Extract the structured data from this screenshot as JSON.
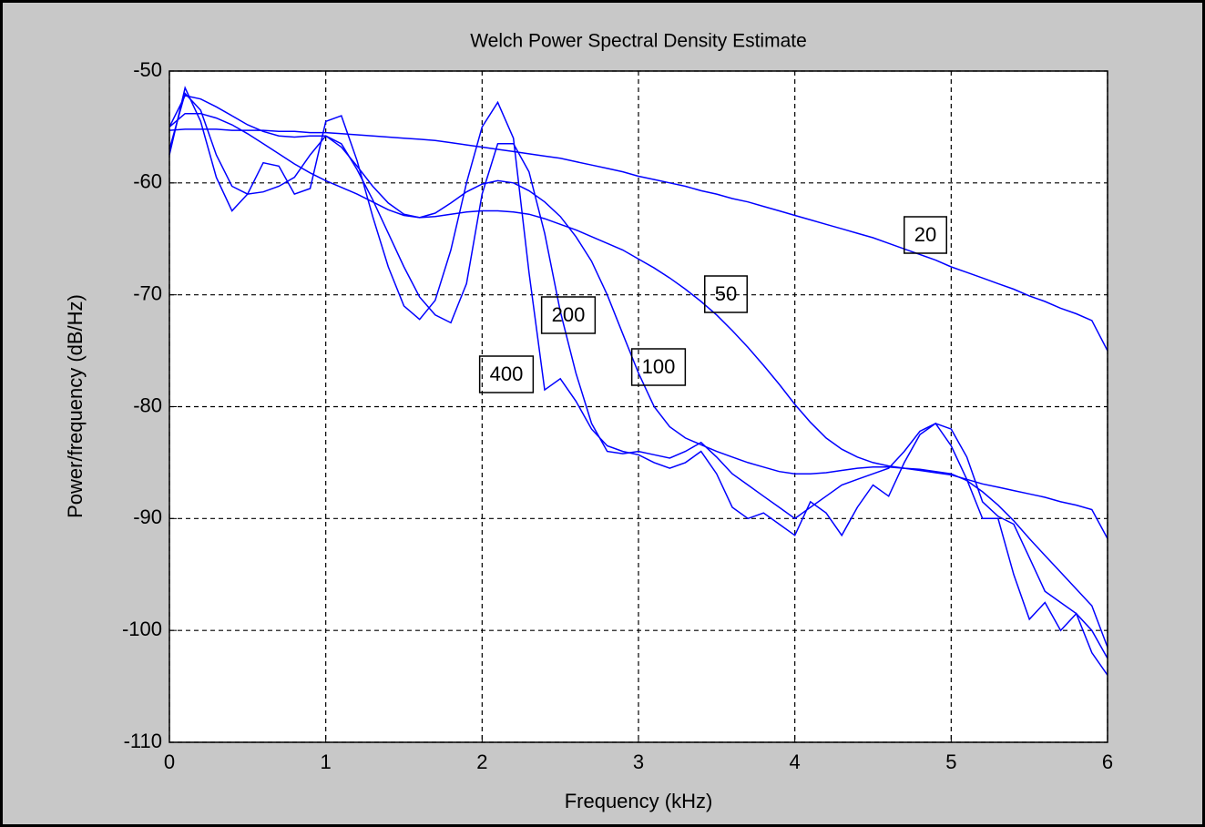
{
  "chart_data": {
    "type": "line",
    "title": "Welch Power Spectral Density Estimate",
    "x_label": "Frequency (kHz)",
    "y_label": "Power/frequency (dB/Hz)",
    "xlim": [
      0,
      6
    ],
    "ylim": [
      -110,
      -50
    ],
    "xticks": [
      0,
      1,
      2,
      3,
      4,
      5,
      6
    ],
    "yticks": [
      -110,
      -100,
      -90,
      -80,
      -70,
      -60,
      -50
    ],
    "grid": true,
    "x": [
      0,
      0.1,
      0.2,
      0.3,
      0.4,
      0.5,
      0.6,
      0.7,
      0.8,
      0.9,
      1,
      1.1,
      1.2,
      1.3,
      1.4,
      1.5,
      1.6,
      1.7,
      1.8,
      1.9,
      2,
      2.1,
      2.2,
      2.3,
      2.4,
      2.5,
      2.6,
      2.7,
      2.8,
      2.9,
      3,
      3.1,
      3.2,
      3.3,
      3.4,
      3.5,
      3.6,
      3.7,
      3.8,
      3.9,
      4,
      4.1,
      4.2,
      4.3,
      4.4,
      4.5,
      4.6,
      4.7,
      4.8,
      4.9,
      5,
      5.1,
      5.2,
      5.3,
      5.4,
      5.5,
      5.6,
      5.7,
      5.8,
      5.9,
      6
    ],
    "series": [
      {
        "name": "20",
        "color": "#0000ff",
        "values": [
          -55.3,
          -55.2,
          -55.2,
          -55.2,
          -55.3,
          -55.3,
          -55.3,
          -55.4,
          -55.4,
          -55.5,
          -55.5,
          -55.6,
          -55.7,
          -55.8,
          -55.9,
          -56.0,
          -56.1,
          -56.2,
          -56.4,
          -56.6,
          -56.8,
          -57.0,
          -57.2,
          -57.4,
          -57.6,
          -57.8,
          -58.1,
          -58.4,
          -58.7,
          -59.0,
          -59.4,
          -59.7,
          -60.0,
          -60.3,
          -60.7,
          -61.0,
          -61.4,
          -61.7,
          -62.1,
          -62.5,
          -62.9,
          -63.3,
          -63.7,
          -64.1,
          -64.5,
          -64.9,
          -65.4,
          -65.9,
          -66.4,
          -66.9,
          -67.5,
          -68.0,
          -68.5,
          -69.0,
          -69.5,
          -70.1,
          -70.6,
          -71.2,
          -71.7,
          -72.3,
          -75.0
        ]
      },
      {
        "name": "50",
        "color": "#0000ff",
        "values": [
          -55,
          -53.8,
          -53.8,
          -54.2,
          -54.8,
          -55.6,
          -56.5,
          -57.4,
          -58.3,
          -59.1,
          -59.8,
          -60.4,
          -61.0,
          -61.7,
          -62.4,
          -62.9,
          -63.1,
          -63.0,
          -62.8,
          -62.6,
          -62.5,
          -62.5,
          -62.6,
          -62.8,
          -63.2,
          -63.7,
          -64.2,
          -64.8,
          -65.4,
          -66.0,
          -66.8,
          -67.6,
          -68.5,
          -69.5,
          -70.6,
          -71.8,
          -73.2,
          -74.7,
          -76.3,
          -78.0,
          -79.8,
          -81.4,
          -82.8,
          -83.8,
          -84.5,
          -85.0,
          -85.3,
          -85.5,
          -85.7,
          -85.9,
          -86.1,
          -86.5,
          -86.9,
          -87.2,
          -87.5,
          -87.8,
          -88.1,
          -88.5,
          -88.8,
          -89.2,
          -91.8
        ]
      },
      {
        "name": "100",
        "color": "#0000ff",
        "values": [
          -55,
          -52.2,
          -52.5,
          -53.2,
          -54,
          -54.8,
          -55.4,
          -55.8,
          -55.9,
          -55.8,
          -55.8,
          -56.8,
          -58.5,
          -60.3,
          -61.8,
          -62.8,
          -63.1,
          -62.7,
          -61.8,
          -60.8,
          -60.1,
          -59.8,
          -60.0,
          -60.7,
          -61.7,
          -63.0,
          -64.8,
          -67.0,
          -70.0,
          -73.5,
          -77.0,
          -80.0,
          -81.8,
          -82.8,
          -83.4,
          -84.0,
          -84.5,
          -85.0,
          -85.4,
          -85.8,
          -86.0,
          -86.0,
          -85.9,
          -85.7,
          -85.5,
          -85.4,
          -85.4,
          -85.5,
          -85.6,
          -85.8,
          -86.0,
          -86.6,
          -87.6,
          -88.8,
          -90.2,
          -91.8,
          -93.3,
          -94.8,
          -96.3,
          -97.8,
          -101.5
        ]
      },
      {
        "name": "200",
        "color": "#0000ff",
        "values": [
          -57,
          -52,
          -53.5,
          -57.5,
          -60.3,
          -61,
          -60.8,
          -60.3,
          -59.5,
          -57.5,
          -55.8,
          -56.5,
          -58.8,
          -61.5,
          -64.5,
          -67.5,
          -70.2,
          -71.8,
          -72.5,
          -69,
          -61,
          -56.5,
          -56.5,
          -59,
          -64.5,
          -71.5,
          -77,
          -81.5,
          -84,
          -84.2,
          -84,
          -84.3,
          -84.6,
          -84,
          -83.2,
          -84.5,
          -86,
          -87,
          -88,
          -89,
          -90,
          -89,
          -88,
          -87,
          -86.5,
          -86,
          -85.5,
          -84,
          -82.2,
          -81.5,
          -82,
          -84.5,
          -88.5,
          -89.8,
          -90.5,
          -93.5,
          -96.5,
          -97.5,
          -98.5,
          -100,
          -102.5
        ]
      },
      {
        "name": "400",
        "color": "#0000ff",
        "values": [
          -57.5,
          -51.5,
          -54.5,
          -59.5,
          -62.5,
          -61,
          -58.2,
          -58.5,
          -61,
          -60.5,
          -54.5,
          -54,
          -58,
          -63,
          -67.5,
          -71,
          -72.2,
          -70.5,
          -66,
          -60,
          -55,
          -52.8,
          -56,
          -68,
          -78.5,
          -77.5,
          -79.5,
          -82,
          -83.5,
          -84,
          -84.3,
          -85,
          -85.5,
          -85,
          -84,
          -86,
          -89,
          -90,
          -89.5,
          -90.5,
          -91.5,
          -88.5,
          -89.5,
          -91.5,
          -89,
          -87,
          -88,
          -85,
          -82.5,
          -81.5,
          -83.5,
          -86.5,
          -90,
          -90,
          -95,
          -99,
          -97.5,
          -100,
          -98.5,
          -102,
          -104
        ]
      }
    ]
  }
}
